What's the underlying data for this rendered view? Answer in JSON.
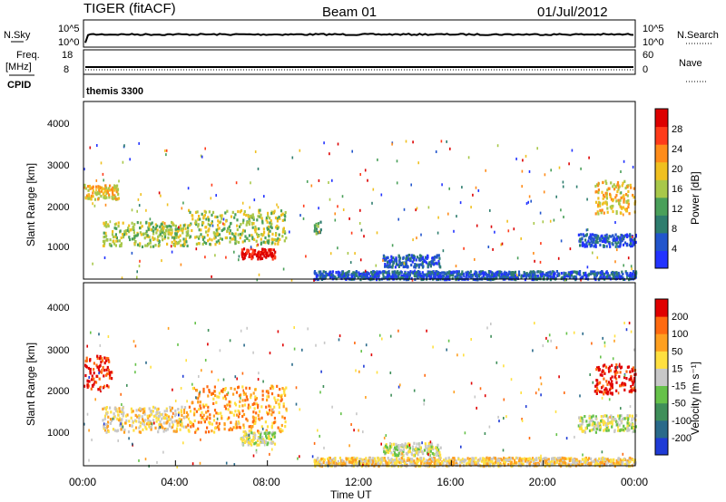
{
  "header": {
    "radar": "TIGER (fitACF)",
    "beam": "Beam 01",
    "date": "01/Jul/2012"
  },
  "panels": {
    "nsky": {
      "label": "N.Sky",
      "right_label": "N.Search",
      "ticks_left": [
        "10^5",
        "10^0"
      ],
      "ticks_right": [
        "10^5",
        "10^0"
      ]
    },
    "freq": {
      "label_top": "Freq.",
      "label_unit": "[MHz]",
      "cpid_label": "CPID",
      "right_label": "Nave",
      "ticks_left": [
        "18",
        "8"
      ],
      "ticks_right": [
        "60",
        "0"
      ]
    },
    "cpid_text": "themis 3300"
  },
  "power_panel": {
    "ylabel": "Slant Range [km]",
    "yticks": [
      "4000",
      "3000",
      "2000",
      "1000"
    ],
    "colorbar_label": "Power [dB]",
    "colorbar_ticks": [
      "28",
      "24",
      "20",
      "16",
      "12",
      "8",
      "4"
    ]
  },
  "velocity_panel": {
    "ylabel": "Slant Range [km]",
    "yticks": [
      "4000",
      "3000",
      "2000",
      "1000"
    ],
    "colorbar_label": "Velocity [m s⁻¹]",
    "colorbar_ticks": [
      "200",
      "100",
      "50",
      "15",
      "-15",
      "-50",
      "-100",
      "-200"
    ]
  },
  "xaxis": {
    "ticks": [
      "00:00",
      "04:00",
      "08:00",
      "12:00",
      "16:00",
      "20:00",
      "00:00"
    ],
    "label": "Time UT"
  },
  "chart_data": {
    "type": "heatmap",
    "x_range_hours": [
      0,
      24
    ],
    "y_range_km": [
      180,
      4500
    ],
    "power_colors": [
      "#2233ff",
      "#2255cc",
      "#2e7d6e",
      "#4aa05a",
      "#a8c84a",
      "#f0c020",
      "#ff8c1a",
      "#ff3b1a",
      "#dd0000"
    ],
    "velocity_colors": [
      "#1f3bd6",
      "#2a6a8a",
      "#3f8f5a",
      "#66c24a",
      "#c8c8c8",
      "#ffe040",
      "#ffa020",
      "#ff6a10",
      "#e00000"
    ],
    "power_regions": [
      {
        "t": [
          0.0,
          1.5
        ],
        "r": [
          2150,
          2500
        ],
        "level": 5
      },
      {
        "t": [
          0.8,
          4.5
        ],
        "r": [
          1000,
          1600
        ],
        "level": 4
      },
      {
        "t": [
          4.5,
          8.8
        ],
        "r": [
          1050,
          1900
        ],
        "level": 4
      },
      {
        "t": [
          6.8,
          8.3
        ],
        "r": [
          700,
          950
        ],
        "level": 8
      },
      {
        "t": [
          10.0,
          10.3
        ],
        "r": [
          1300,
          1600
        ],
        "level": 3
      },
      {
        "t": [
          13.0,
          15.5
        ],
        "r": [
          500,
          800
        ],
        "level": 1
      },
      {
        "t": [
          10.0,
          24.0
        ],
        "r": [
          200,
          400
        ],
        "level": 1
      },
      {
        "t": [
          22.2,
          24.0
        ],
        "r": [
          1800,
          2600
        ],
        "level": 5
      },
      {
        "t": [
          21.5,
          24.0
        ],
        "r": [
          1000,
          1300
        ],
        "level": 1
      }
    ],
    "velocity_regions": [
      {
        "t": [
          0.0,
          1.2
        ],
        "r": [
          2000,
          2800
        ],
        "level": 8
      },
      {
        "t": [
          0.8,
          4.5
        ],
        "r": [
          1000,
          1600
        ],
        "level": 5
      },
      {
        "t": [
          4.5,
          8.8
        ],
        "r": [
          1000,
          2100
        ],
        "level": 6
      },
      {
        "t": [
          6.8,
          8.3
        ],
        "r": [
          700,
          1000
        ],
        "level": 4
      },
      {
        "t": [
          13.0,
          15.5
        ],
        "r": [
          450,
          750
        ],
        "level": 4
      },
      {
        "t": [
          10.0,
          24.0
        ],
        "r": [
          200,
          400
        ],
        "level": 5
      },
      {
        "t": [
          22.2,
          24.0
        ],
        "r": [
          1900,
          2600
        ],
        "level": 8
      },
      {
        "t": [
          21.5,
          24.0
        ],
        "r": [
          1000,
          1400
        ],
        "level": 4
      }
    ]
  }
}
